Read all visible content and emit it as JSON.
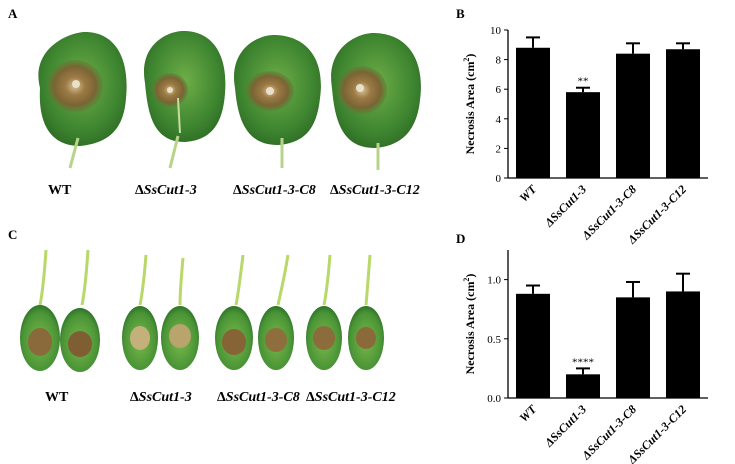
{
  "panels": {
    "a": "A",
    "b": "B",
    "c": "C",
    "d": "D"
  },
  "photo_labels": [
    {
      "prefix": "",
      "text": "WT"
    },
    {
      "prefix": "Δ",
      "text": "SsCut1-3"
    },
    {
      "prefix": "Δ",
      "text": "SsCut1-3-C8"
    },
    {
      "prefix": "Δ",
      "text": "SsCut1-3-C12"
    }
  ],
  "colors": {
    "leaf_dark": "#2f6e28",
    "leaf_mid": "#4f9a3a",
    "leaf_light": "#8dc35a",
    "lesion": "#8a6a3c",
    "bar": "#000000"
  },
  "chart_data": [
    {
      "type": "bar",
      "panel": "B",
      "categories": [
        "WT",
        "ΔSsCut1-3",
        "ΔSsCut1-3-C8",
        "ΔSsCut1-3-C12"
      ],
      "values": [
        8.8,
        5.8,
        8.4,
        8.7
      ],
      "errors": [
        0.7,
        0.3,
        0.7,
        0.4
      ],
      "significance": [
        "",
        "**",
        "",
        ""
      ],
      "ylabel_main": "Necrosis Area (cm",
      "ylabel_sup": "2",
      "ylabel_end": ")",
      "ylim": [
        0,
        10
      ],
      "yticks": [
        "0",
        "2",
        "4",
        "6",
        "8",
        "10"
      ]
    },
    {
      "type": "bar",
      "panel": "D",
      "categories": [
        "WT",
        "ΔSsCut1-3",
        "ΔSsCut1-3-C8",
        "ΔSsCut1-3-C12"
      ],
      "values": [
        0.88,
        0.2,
        0.85,
        0.9
      ],
      "errors": [
        0.07,
        0.05,
        0.13,
        0.15
      ],
      "significance": [
        "",
        "****",
        "",
        ""
      ],
      "ylabel_main": "Necrosis Area (cm",
      "ylabel_sup": "2",
      "ylabel_end": ")",
      "ylim": [
        0,
        1.25
      ],
      "yticks": [
        "0.0",
        "0.5",
        "1.0"
      ]
    }
  ]
}
